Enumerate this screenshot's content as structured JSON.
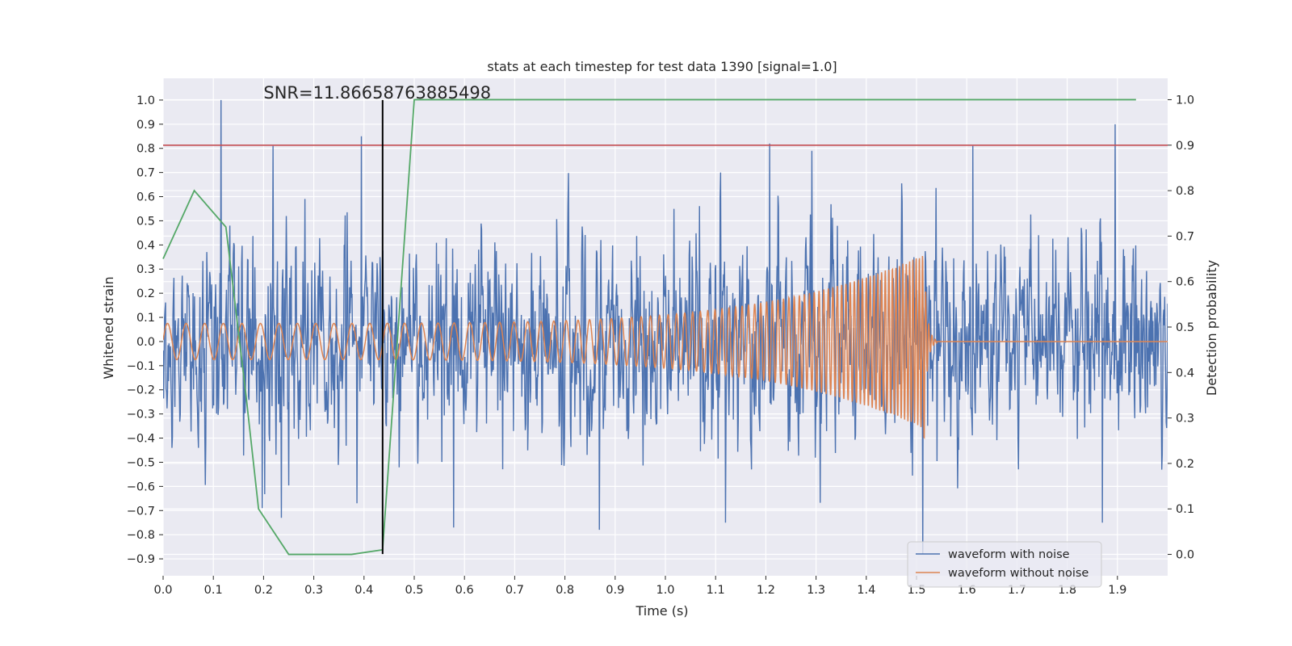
{
  "chart_data": {
    "type": "line",
    "title": "stats at each timestep for test data 1390 [signal=1.0]",
    "xlabel": "Time (s)",
    "ylabel": "Whitened strain",
    "ylabel_right": "Detection probability",
    "xlim": [
      0.0,
      2.0
    ],
    "ylim": [
      -0.97,
      1.09
    ],
    "ylim_right": [
      -0.047,
      1.047
    ],
    "x_ticks": [
      0.0,
      0.1,
      0.2,
      0.3,
      0.4,
      0.5,
      0.6,
      0.7,
      0.8,
      0.9,
      1.0,
      1.1,
      1.2,
      1.3,
      1.4,
      1.5,
      1.6,
      1.7,
      1.8,
      1.9
    ],
    "x_tick_labels": [
      "0.0",
      "0.1",
      "0.2",
      "0.3",
      "0.4",
      "0.5",
      "0.6",
      "0.7",
      "0.8",
      "0.9",
      "1.0",
      "1.1",
      "1.2",
      "1.3",
      "1.4",
      "1.5",
      "1.6",
      "1.7",
      "1.8",
      "1.9"
    ],
    "y_ticks": [
      1.0,
      0.9,
      0.8,
      0.7,
      0.6,
      0.5,
      0.4,
      0.3,
      0.2,
      0.1,
      0.0,
      -0.1,
      -0.2,
      -0.3,
      -0.4,
      -0.5,
      -0.6,
      -0.7,
      -0.8,
      -0.9
    ],
    "y_tick_labels": [
      "1.0",
      "0.9",
      "0.8",
      "0.7",
      "0.6",
      "0.5",
      "0.4",
      "0.3",
      "0.2",
      "0.1",
      "0.0",
      "−0.1",
      "−0.2",
      "−0.3",
      "−0.4",
      "−0.5",
      "−0.6",
      "−0.7",
      "−0.8",
      "−0.9"
    ],
    "y_right_ticks": [
      1.0,
      0.9,
      0.8,
      0.7,
      0.6,
      0.5,
      0.4,
      0.3,
      0.2,
      0.1,
      0.0
    ],
    "y_right_tick_labels": [
      "1.0",
      "0.9",
      "0.8",
      "0.7",
      "0.6",
      "0.5",
      "0.4",
      "0.3",
      "0.2",
      "0.1",
      "0.0"
    ],
    "grid": true,
    "legend": {
      "placement": "lower-right",
      "entries": [
        "waveform with noise",
        "waveform without noise"
      ]
    },
    "colors": {
      "background": "#eaeaf2",
      "grid": "#ffffff",
      "noisy": "#4c72b0",
      "clean": "#dd8452",
      "probability": "#55a868",
      "threshold": "#c44e52",
      "marker": "#000000"
    },
    "annotation": {
      "text": "SNR=11.86658763885498",
      "x": 0.2,
      "y": 1.0
    },
    "threshold": {
      "axis": "right",
      "y": 0.9
    },
    "marker_line": {
      "x": 0.437,
      "y_from": -0.88,
      "y_to": 1.0
    },
    "series": [
      {
        "name": "waveform with noise",
        "axis": "left",
        "generator": "noise",
        "t_start": 0.0,
        "t_end": 2.0,
        "samples": 2048,
        "typical_amplitude": 0.28,
        "peaks": [
          {
            "x": 0.115,
            "y": 1.0
          },
          {
            "x": 0.133,
            "y": 0.48
          },
          {
            "x": 0.219,
            "y": 0.81
          },
          {
            "x": 0.197,
            "y": -0.69
          },
          {
            "x": 0.235,
            "y": -0.73
          },
          {
            "x": 0.395,
            "y": 0.85
          },
          {
            "x": 0.386,
            "y": -0.67
          },
          {
            "x": 0.578,
            "y": -0.77
          },
          {
            "x": 0.869,
            "y": -0.78
          },
          {
            "x": 1.208,
            "y": 0.82
          },
          {
            "x": 1.292,
            "y": 0.79
          },
          {
            "x": 1.12,
            "y": -0.75
          },
          {
            "x": 1.512,
            "y": -0.88
          },
          {
            "x": 1.612,
            "y": 0.81
          },
          {
            "x": 1.895,
            "y": 0.9
          },
          {
            "x": 1.87,
            "y": -0.75
          }
        ]
      },
      {
        "name": "waveform without noise",
        "axis": "left",
        "generator": "chirp",
        "t_start": 0.0,
        "t_end": 2.0,
        "samples": 4000,
        "f0": 27,
        "f_peak": 160,
        "t_merger": 1.515,
        "amp_start": 0.075,
        "amp_peak": 0.36,
        "amp_min_peak": -0.41,
        "ringdown_end": 1.54
      },
      {
        "axis": "right",
        "x": [
          0.0,
          0.062,
          0.125,
          0.165,
          0.19,
          0.25,
          0.312,
          0.375,
          0.437,
          0.5,
          0.562,
          0.625,
          0.75,
          1.0,
          1.25,
          1.5,
          1.75,
          1.937
        ],
        "y": [
          0.65,
          0.8,
          0.72,
          0.35,
          0.1,
          0.0,
          0.0,
          0.0,
          0.01,
          1.0,
          1.0,
          1.0,
          1.0,
          1.0,
          1.0,
          1.0,
          1.0,
          1.0
        ]
      }
    ]
  }
}
